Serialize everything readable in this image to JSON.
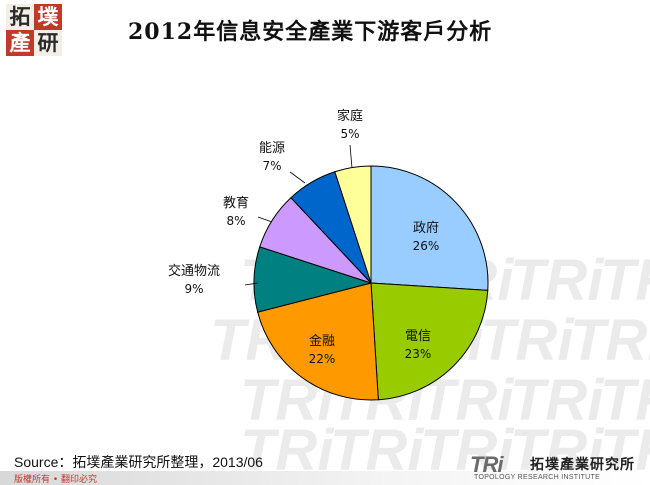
{
  "title": "2012年信息安全產業下游客戶分析",
  "logo_chars": [
    "拓",
    "墣",
    "產",
    "研"
  ],
  "source": "Source：拓墣產業研究所整理，2013/06",
  "copyright": "版權所有 • 翻印必究",
  "footer_logo": {
    "mark": "TRi",
    "cn_name": "拓墣產業研究所",
    "en_name": "TOPOLOGY RESEARCH INSTITUTE"
  },
  "watermark_text": "TRi",
  "chart_data": {
    "type": "pie",
    "title": "2012年信息安全產業下游客戶分析",
    "start": "12 o'clock",
    "direction": "clockwise",
    "legend": "none",
    "slices": [
      {
        "label": "政府",
        "value": 26,
        "display": "26%",
        "color": "#99ccff"
      },
      {
        "label": "電信",
        "value": 23,
        "display": "23%",
        "color": "#99cc00"
      },
      {
        "label": "金融",
        "value": 22,
        "display": "22%",
        "color": "#ff9900"
      },
      {
        "label": "交通物流",
        "value": 9,
        "display": "9%",
        "color": "#008080"
      },
      {
        "label": "教育",
        "value": 8,
        "display": "8%",
        "color": "#cc99ff"
      },
      {
        "label": "能源",
        "value": 7,
        "display": "7%",
        "color": "#0066cc"
      },
      {
        "label": "家庭",
        "value": 5,
        "display": "5%",
        "color": "#ffff99"
      }
    ]
  }
}
